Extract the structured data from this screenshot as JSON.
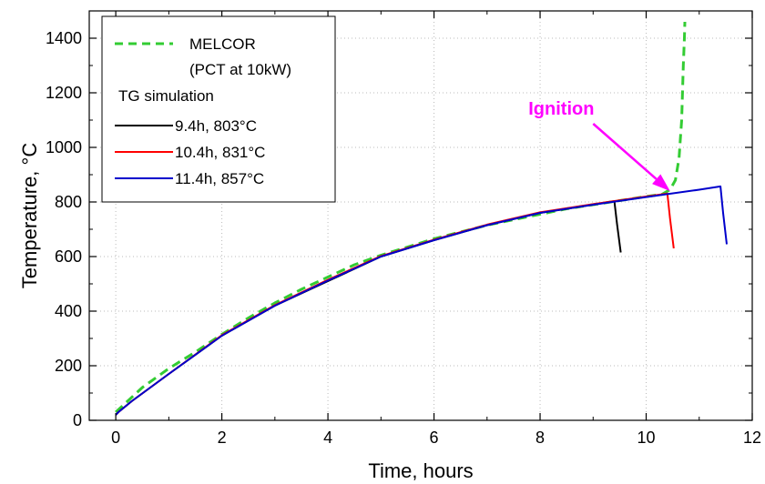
{
  "chart_data": {
    "type": "line",
    "xlabel": "Time, hours",
    "ylabel": "Temperature, °C",
    "xlim": [
      -0.5,
      12
    ],
    "ylim": [
      0,
      1500
    ],
    "xticks": [
      0,
      2,
      4,
      6,
      8,
      10,
      12
    ],
    "yticks": [
      0,
      200,
      400,
      600,
      800,
      1000,
      1200,
      1400
    ],
    "grid": true,
    "legend_position": "top-left",
    "legend": {
      "title_line1": "MELCOR",
      "title_line2": "(PCT at 10kW)",
      "group_title": "TG simulation"
    },
    "annotation": {
      "text": "Ignition",
      "color": "#ff00ff",
      "target_x": 10.45,
      "target_y": 840,
      "text_x": 8.4,
      "text_y": 1060
    },
    "series": [
      {
        "name": "MELCOR",
        "color": "#33cc33",
        "dash": true,
        "x": [
          0.0,
          0.5,
          1.0,
          1.5,
          2.0,
          2.5,
          3.0,
          3.5,
          4.0,
          4.5,
          5.0,
          5.5,
          6.0,
          6.5,
          7.0,
          7.5,
          8.0,
          8.5,
          9.0,
          9.5,
          10.0,
          10.3,
          10.45,
          10.55,
          10.62,
          10.67,
          10.7,
          10.72,
          10.73
        ],
        "y": [
          30,
          120,
          190,
          250,
          315,
          375,
          430,
          480,
          525,
          570,
          605,
          635,
          665,
          690,
          715,
          735,
          755,
          775,
          790,
          805,
          820,
          828,
          845,
          880,
          960,
          1100,
          1300,
          1400,
          1460
        ]
      },
      {
        "name": "9.4h, 803°C",
        "color": "#000000",
        "dash": false,
        "x": [
          0.0,
          0.05,
          0.3,
          1.0,
          2.0,
          3.0,
          4.0,
          5.0,
          6.0,
          7.0,
          8.0,
          9.0,
          9.4,
          9.45,
          9.52
        ],
        "y": [
          20,
          30,
          70,
          170,
          310,
          420,
          510,
          600,
          660,
          715,
          760,
          790,
          803,
          720,
          615
        ]
      },
      {
        "name": "10.4h, 831°C",
        "color": "#ff0000",
        "dash": false,
        "x": [
          0.0,
          0.05,
          0.3,
          1.0,
          2.0,
          3.0,
          4.0,
          5.0,
          6.0,
          7.0,
          8.0,
          9.0,
          10.0,
          10.4,
          10.45,
          10.52
        ],
        "y": [
          20,
          30,
          70,
          170,
          312,
          422,
          515,
          602,
          662,
          717,
          762,
          792,
          820,
          831,
          740,
          630
        ]
      },
      {
        "name": "11.4h, 857°C",
        "color": "#0000cc",
        "dash": false,
        "x": [
          0.0,
          0.05,
          0.3,
          1.0,
          2.0,
          3.0,
          4.0,
          5.0,
          6.0,
          7.0,
          8.0,
          9.0,
          10.0,
          11.0,
          11.4,
          11.45,
          11.52
        ],
        "y": [
          20,
          30,
          70,
          170,
          310,
          420,
          512,
          600,
          660,
          715,
          760,
          790,
          818,
          845,
          857,
          760,
          645
        ]
      }
    ]
  }
}
